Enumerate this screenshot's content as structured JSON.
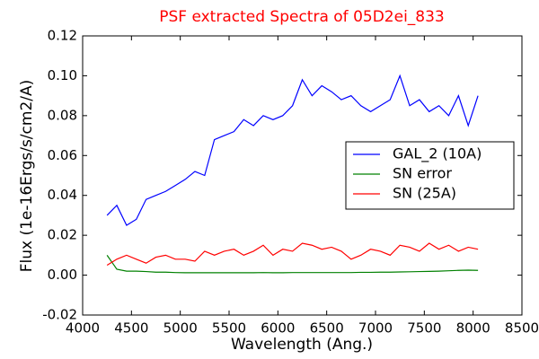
{
  "chart_data": {
    "type": "line",
    "title": "PSF extracted Spectra of 05D2ei_833",
    "title_color": "#ff0000",
    "xlabel": "Wavelength (Ang.)",
    "ylabel": "Flux (1e-16Ergs/s/cm2/A)",
    "x": [
      4250,
      4350,
      4450,
      4550,
      4650,
      4750,
      4850,
      4950,
      5050,
      5150,
      5250,
      5350,
      5450,
      5550,
      5650,
      5750,
      5850,
      5950,
      6050,
      6150,
      6250,
      6350,
      6450,
      6550,
      6650,
      6750,
      6850,
      6950,
      7050,
      7150,
      7250,
      7350,
      7450,
      7550,
      7650,
      7750,
      7850,
      7950,
      8050
    ],
    "series": [
      {
        "name": "GAL_2 (10A)",
        "color": "#0000ff",
        "values": [
          0.03,
          0.035,
          0.025,
          0.028,
          0.038,
          0.04,
          0.042,
          0.045,
          0.048,
          0.052,
          0.05,
          0.068,
          0.07,
          0.072,
          0.078,
          0.075,
          0.08,
          0.078,
          0.08,
          0.085,
          0.098,
          0.09,
          0.095,
          0.092,
          0.088,
          0.09,
          0.085,
          0.082,
          0.085,
          0.088,
          0.1,
          0.085,
          0.088,
          0.082,
          0.085,
          0.08,
          0.09,
          0.075,
          0.09
        ]
      },
      {
        "name": "SN error",
        "color": "#008000",
        "values": [
          0.01,
          0.003,
          0.002,
          0.002,
          0.0018,
          0.0015,
          0.0015,
          0.0013,
          0.0012,
          0.0012,
          0.0012,
          0.0012,
          0.0012,
          0.0012,
          0.0012,
          0.0012,
          0.0013,
          0.0012,
          0.0012,
          0.0013,
          0.0013,
          0.0013,
          0.0013,
          0.0013,
          0.0013,
          0.0013,
          0.0014,
          0.0014,
          0.0015,
          0.0015,
          0.0016,
          0.0017,
          0.0018,
          0.0019,
          0.002,
          0.0022,
          0.0024,
          0.0025,
          0.0024
        ]
      },
      {
        "name": "SN (25A)",
        "color": "#ff0000",
        "values": [
          0.005,
          0.008,
          0.01,
          0.008,
          0.006,
          0.009,
          0.01,
          0.008,
          0.008,
          0.007,
          0.012,
          0.01,
          0.012,
          0.013,
          0.01,
          0.012,
          0.015,
          0.01,
          0.013,
          0.012,
          0.016,
          0.015,
          0.013,
          0.014,
          0.012,
          0.008,
          0.01,
          0.013,
          0.012,
          0.01,
          0.015,
          0.014,
          0.012,
          0.016,
          0.013,
          0.015,
          0.012,
          0.014,
          0.013
        ]
      }
    ],
    "xlim": [
      4000,
      8500
    ],
    "xticks": [
      4000,
      4500,
      5000,
      5500,
      6000,
      6500,
      7000,
      7500,
      8000,
      8500
    ],
    "ylim": [
      -0.02,
      0.12
    ],
    "yticks": [
      -0.02,
      {
        "value": 0,
        "label": "0.00"
      },
      0.02,
      0.04,
      0.06,
      0.08,
      {
        "value": 0.1,
        "label": "0.10"
      },
      0.12
    ],
    "legend": "center right"
  }
}
